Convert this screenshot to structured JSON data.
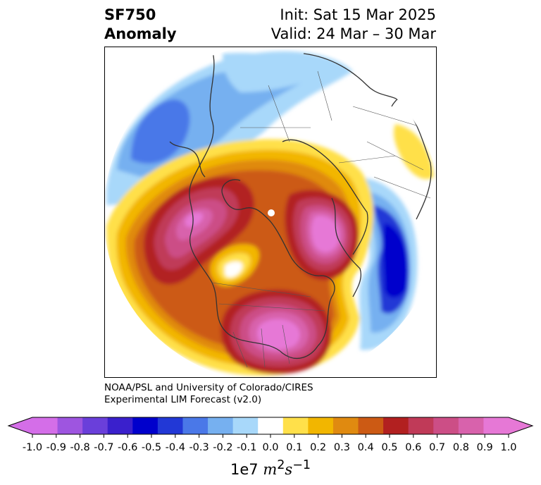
{
  "title": {
    "variable": "SF750",
    "kind": "Anomaly",
    "init": "Init: Sat 15 Mar 2025",
    "valid": "Valid: 24 Mar – 30 Mar"
  },
  "credit": {
    "line1": "NOAA/PSL and University of Colorado/CIRES",
    "line2": "Experimental LIM Forecast (v2.0)"
  },
  "colorbar": {
    "ticks": [
      "-1.0",
      "-0.9",
      "-0.8",
      "-0.7",
      "-0.6",
      "-0.5",
      "-0.4",
      "-0.3",
      "-0.2",
      "-0.1",
      "0.0",
      "0.1",
      "0.2",
      "0.3",
      "0.4",
      "0.5",
      "0.6",
      "0.7",
      "0.8",
      "0.9",
      "1.0"
    ],
    "colors": [
      "#d46ee8",
      "#9e55e0",
      "#6a3fda",
      "#3a20cc",
      "#0000cc",
      "#2238d6",
      "#4a78e8",
      "#76b0f0",
      "#a8d8fa",
      "#ffffff",
      "#ffe04a",
      "#f2b600",
      "#e08a10",
      "#cc5a14",
      "#b22020",
      "#c03a58",
      "#cc4e86",
      "#d862ac",
      "#e678d6"
    ],
    "under_color": "#d46ee8",
    "over_color": "#e678d6",
    "unit_base": "1e7",
    "unit_m": "m",
    "unit_m_exp": "2",
    "unit_s": "s",
    "unit_s_exp": "−1"
  }
}
